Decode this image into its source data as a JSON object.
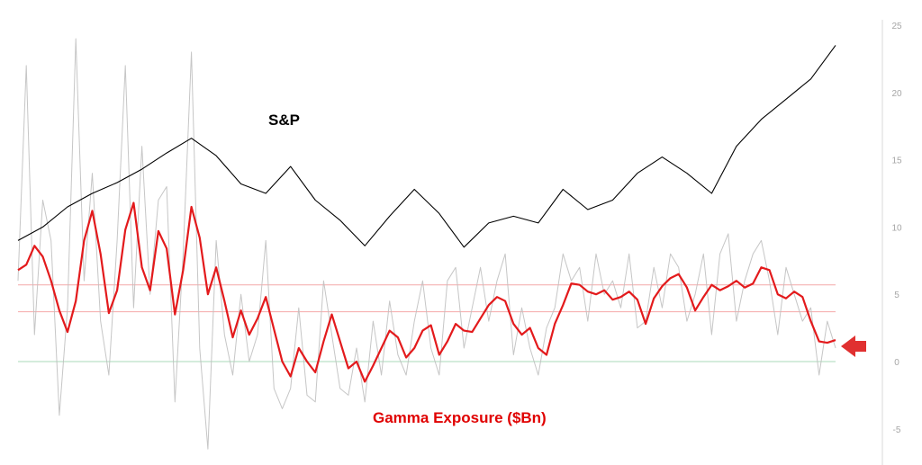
{
  "chart_data": {
    "type": "line",
    "title": "",
    "xlabel": "",
    "ylabel": "",
    "ylim": [
      -7,
      25
    ],
    "y_ticks": [
      25,
      20,
      15,
      10,
      5,
      0,
      -5
    ],
    "grid": false,
    "legend": "none",
    "annotations": {
      "sp_label": "S&P",
      "gex_label": "Gamma Exposure ($Bn)"
    },
    "reference_lines": [
      {
        "name": "upper-band",
        "y": 5.7,
        "color": "#f4a9a9"
      },
      {
        "name": "lower-band",
        "y": 3.7,
        "color": "#f4a9a9"
      },
      {
        "name": "zero-line",
        "y": 0,
        "color": "#a8d8b8"
      }
    ],
    "series": [
      {
        "key": "sp",
        "color": "#000000",
        "x": [
          0,
          3,
          6,
          9,
          12,
          15,
          18,
          21,
          24,
          27,
          30,
          33,
          36,
          39,
          42,
          45,
          48,
          51,
          54,
          57,
          60,
          63,
          66,
          69,
          72,
          75,
          78,
          81,
          84,
          87,
          90,
          93,
          96,
          99
        ],
        "values": [
          9.0,
          10.0,
          11.5,
          12.5,
          13.3,
          14.3,
          15.5,
          16.6,
          15.3,
          13.2,
          12.5,
          14.5,
          12.0,
          10.5,
          8.6,
          10.8,
          12.8,
          11.0,
          8.5,
          10.3,
          10.8,
          10.3,
          12.8,
          11.3,
          12.0,
          14.0,
          15.2,
          14.0,
          12.5,
          16.0,
          18.0,
          19.5,
          21.0,
          23.5
        ]
      },
      {
        "key": "gamma_smooth",
        "color": "#e31a1c",
        "x": [
          0,
          1,
          2,
          3,
          4,
          5,
          6,
          7,
          8,
          9,
          10,
          11,
          12,
          13,
          14,
          15,
          16,
          17,
          18,
          19,
          20,
          21,
          22,
          23,
          24,
          25,
          26,
          27,
          28,
          29,
          30,
          31,
          32,
          33,
          34,
          35,
          36,
          37,
          38,
          39,
          40,
          41,
          42,
          43,
          44,
          45,
          46,
          47,
          48,
          49,
          50,
          51,
          52,
          53,
          54,
          55,
          56,
          57,
          58,
          59,
          60,
          61,
          62,
          63,
          64,
          65,
          66,
          67,
          68,
          69,
          70,
          71,
          72,
          73,
          74,
          75,
          76,
          77,
          78,
          79,
          80,
          81,
          82,
          83,
          84,
          85,
          86,
          87,
          88,
          89,
          90,
          91,
          92,
          93,
          94,
          95,
          96,
          97,
          98,
          99
        ],
        "values": [
          6.8,
          7.2,
          8.6,
          7.8,
          6.0,
          3.8,
          2.2,
          4.5,
          9.0,
          11.2,
          8.0,
          3.6,
          5.3,
          9.8,
          11.8,
          7.0,
          5.3,
          9.7,
          8.4,
          3.5,
          6.8,
          11.5,
          9.2,
          5.0,
          7.0,
          4.5,
          1.8,
          3.8,
          2.0,
          3.2,
          4.8,
          2.4,
          0.0,
          -1.1,
          1.0,
          0.0,
          -0.8,
          1.5,
          3.5,
          1.5,
          -0.5,
          0.0,
          -1.5,
          -0.3,
          1.0,
          2.3,
          1.8,
          0.3,
          1.0,
          2.3,
          2.7,
          0.5,
          1.5,
          2.8,
          2.3,
          2.2,
          3.2,
          4.2,
          4.8,
          4.5,
          2.8,
          2.0,
          2.5,
          1.0,
          0.5,
          2.8,
          4.2,
          5.8,
          5.7,
          5.2,
          5.0,
          5.3,
          4.6,
          4.8,
          5.2,
          4.6,
          2.8,
          4.7,
          5.6,
          6.2,
          6.5,
          5.5,
          3.8,
          4.8,
          5.7,
          5.3,
          5.6,
          6.0,
          5.5,
          5.8,
          7.0,
          6.8,
          5.0,
          4.7,
          5.2,
          4.8,
          3.0,
          1.5,
          1.4,
          1.6
        ]
      },
      {
        "key": "gamma_daily",
        "color": "#c0c0c0",
        "x": [
          0,
          1,
          2,
          3,
          4,
          5,
          6,
          7,
          8,
          9,
          10,
          11,
          12,
          13,
          14,
          15,
          16,
          17,
          18,
          19,
          20,
          21,
          22,
          23,
          24,
          25,
          26,
          27,
          28,
          29,
          30,
          31,
          32,
          33,
          34,
          35,
          36,
          37,
          38,
          39,
          40,
          41,
          42,
          43,
          44,
          45,
          46,
          47,
          48,
          49,
          50,
          51,
          52,
          53,
          54,
          55,
          56,
          57,
          58,
          59,
          60,
          61,
          62,
          63,
          64,
          65,
          66,
          67,
          68,
          69,
          70,
          71,
          72,
          73,
          74,
          75,
          76,
          77,
          78,
          79,
          80,
          81,
          82,
          83,
          84,
          85,
          86,
          87,
          88,
          89,
          90,
          91,
          92,
          93,
          94,
          95,
          96,
          97,
          98,
          99
        ],
        "values": [
          6.0,
          22.0,
          2.0,
          12.0,
          9.0,
          -4.0,
          4.0,
          24.0,
          6.0,
          14.0,
          3.0,
          -1.0,
          9.0,
          22.0,
          4.0,
          16.0,
          5.0,
          12.0,
          13.0,
          -3.0,
          8.0,
          23.0,
          1.0,
          -6.5,
          9.0,
          2.0,
          -1.0,
          5.0,
          0.0,
          2.0,
          9.0,
          -2.0,
          -3.5,
          -2.0,
          4.0,
          -2.5,
          -3.0,
          6.0,
          2.0,
          -2.0,
          -2.5,
          1.0,
          -3.0,
          3.0,
          -1.0,
          4.5,
          0.5,
          -1.0,
          3.0,
          6.0,
          1.0,
          -1.0,
          6.0,
          7.0,
          1.0,
          4.0,
          7.0,
          3.0,
          6.0,
          8.0,
          0.5,
          4.0,
          1.0,
          -1.0,
          2.5,
          4.0,
          8.0,
          6.0,
          7.0,
          3.0,
          8.0,
          5.0,
          6.0,
          4.0,
          8.0,
          2.5,
          3.0,
          7.0,
          4.0,
          8.0,
          7.0,
          3.0,
          5.0,
          8.0,
          2.0,
          8.0,
          9.5,
          3.0,
          6.0,
          8.0,
          9.0,
          6.0,
          2.0,
          7.0,
          5.0,
          3.0,
          4.0,
          -1.0,
          3.0,
          1.0
        ]
      }
    ]
  },
  "marker": {
    "name": "current-level-arrow",
    "y": 1.2,
    "color": "#e03030"
  }
}
